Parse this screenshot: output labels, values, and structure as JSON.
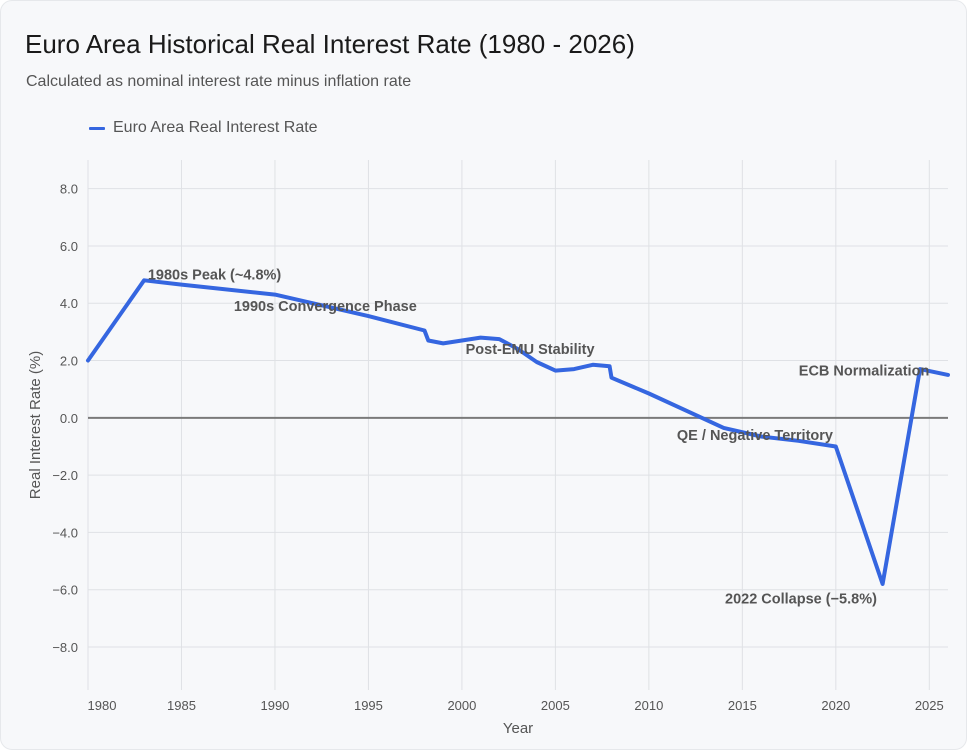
{
  "title": "Euro Area Historical Real Interest Rate (1980 - 2026)",
  "subtitle": "Calculated as nominal interest rate minus inflation rate",
  "colors": {
    "series": "#3566e0",
    "zero_line": "#7a7a7a",
    "grid": "#dfe1e5"
  },
  "chart_data": {
    "type": "line",
    "title": "Euro Area Historical Real Interest Rate (1980 - 2026)",
    "xlabel": "Year",
    "ylabel": "Real Interest Rate (%)",
    "xlim": [
      1980,
      2026
    ],
    "ylim": [
      -9.5,
      9.0
    ],
    "x_ticks": [
      1980,
      1985,
      1990,
      1995,
      2000,
      2005,
      2010,
      2015,
      2020,
      2025
    ],
    "x_tick_labels": [
      "1980",
      "1985",
      "1990",
      "1995",
      "2000",
      "2005",
      "2010",
      "2015",
      "2020",
      "2025"
    ],
    "y_ticks": [
      8,
      6,
      4,
      2,
      0,
      -2,
      -4,
      -6,
      -8
    ],
    "y_tick_labels": [
      "8.0",
      "6.0",
      "4.0",
      "2.0",
      "0.0",
      "−2.0",
      "−4.0",
      "−6.0",
      "−8.0"
    ],
    "grid": true,
    "legend_position": "top-left",
    "series": [
      {
        "name": "Euro Area Real Interest Rate",
        "x": [
          1980,
          1983,
          1985,
          1990,
          1995,
          1998,
          1998.2,
          1999,
          2000,
          2001,
          2002,
          2003,
          2004,
          2005,
          2006,
          2007,
          2007.9,
          2008,
          2010,
          2012,
          2014,
          2016,
          2018,
          2020,
          2022.5,
          2024.5,
          2026
        ],
        "y": [
          2.0,
          4.8,
          4.65,
          4.3,
          3.55,
          3.05,
          2.7,
          2.6,
          2.7,
          2.8,
          2.75,
          2.4,
          1.95,
          1.65,
          1.7,
          1.85,
          1.8,
          1.4,
          0.85,
          0.25,
          -0.35,
          -0.65,
          -0.8,
          -1.0,
          -5.8,
          1.7,
          1.5
        ]
      }
    ],
    "annotations": [
      {
        "text": "1980s Peak (~4.8%)",
        "x": 1983.2,
        "y": 5.0,
        "anchor": "start"
      },
      {
        "text": "1990s Convergence Phase",
        "x": 1987.8,
        "y": 3.9,
        "anchor": "start"
      },
      {
        "text": "Post-EMU Stability",
        "x": 2000.2,
        "y": 2.4,
        "anchor": "start"
      },
      {
        "text": "ECB Normalization",
        "x": 2025.0,
        "y": 1.65,
        "anchor": "end"
      },
      {
        "text": "QE / Negative Territory",
        "x": 2011.5,
        "y": -0.6,
        "anchor": "start"
      },
      {
        "text": "2022 Collapse (−5.8%)",
        "x": 2022.2,
        "y": -6.3,
        "anchor": "end"
      }
    ]
  }
}
